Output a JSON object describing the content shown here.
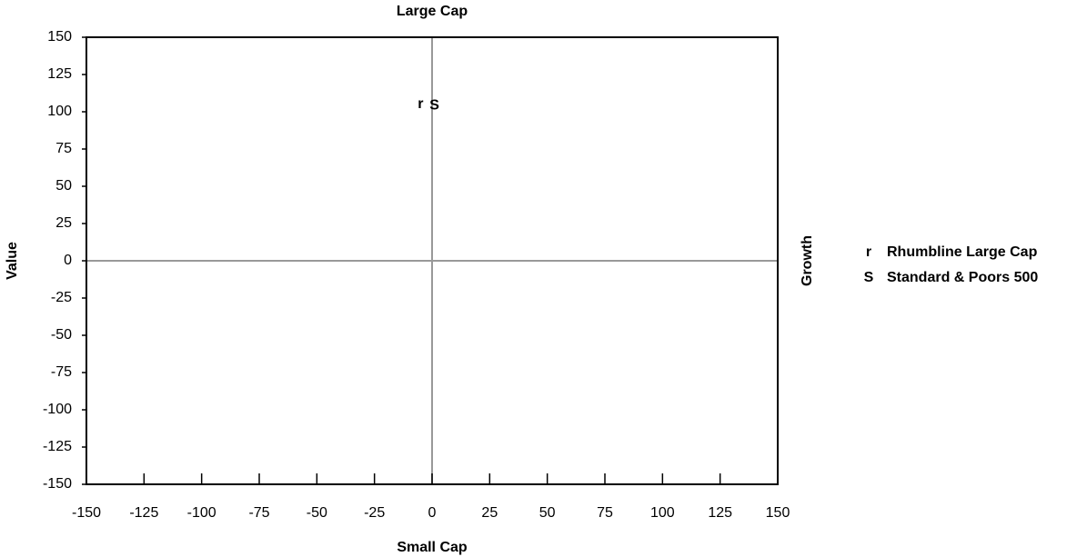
{
  "chart_data": {
    "type": "scatter",
    "title": "Large Cap",
    "x_label": "Small Cap",
    "y_label": "Value",
    "right_label": "Growth",
    "xlim": [
      -150,
      150
    ],
    "xticks": [
      -150,
      -125,
      -100,
      -75,
      -50,
      -25,
      0,
      25,
      50,
      75,
      100,
      125,
      150
    ],
    "ylim": [
      -150,
      150
    ],
    "yticks": [
      -150,
      -125,
      -100,
      -75,
      -50,
      -25,
      0,
      25,
      50,
      75,
      100,
      125,
      150
    ],
    "zero_lines": true,
    "legend": "right",
    "series": [
      {
        "name": "Rhumbline Large Cap",
        "color": "#ff0000",
        "marker": "r",
        "x": [
          -5
        ],
        "values": [
          105
        ]
      },
      {
        "name": "Standard & Poors 500",
        "color": "#0000ff",
        "marker": "S",
        "x": [
          1
        ],
        "values": [
          104
        ]
      }
    ]
  }
}
